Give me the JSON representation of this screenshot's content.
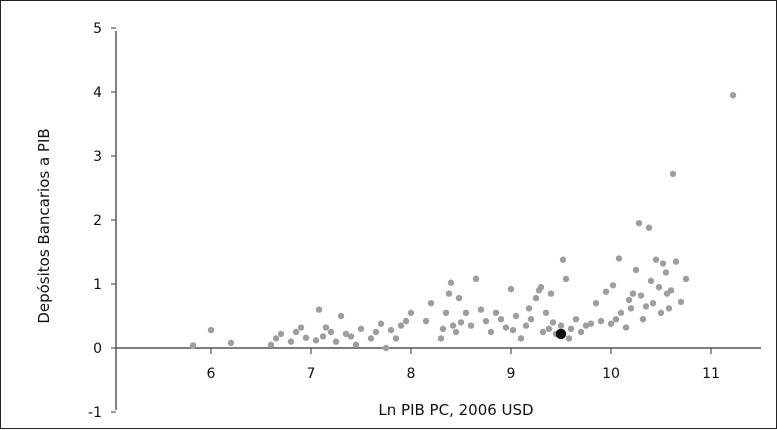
{
  "chart_data": {
    "type": "scatter",
    "xlabel": "Ln PIB PC, 2006 USD",
    "ylabel": "Depósitos Bancarios a PIB",
    "xlim": [
      5,
      12
    ],
    "ylim": [
      -1,
      5
    ],
    "x_ticks": [
      6,
      7,
      8,
      9,
      10,
      11
    ],
    "y_ticks": [
      -1,
      0,
      1,
      2,
      3,
      4,
      5
    ],
    "grid": false,
    "series": [
      {
        "color": "#9e9e9e",
        "points": [
          {
            "x": 5.82,
            "y": 0.04
          },
          {
            "x": 6.0,
            "y": 0.28
          },
          {
            "x": 6.2,
            "y": 0.08
          },
          {
            "x": 6.6,
            "y": 0.05
          },
          {
            "x": 6.65,
            "y": 0.15
          },
          {
            "x": 6.7,
            "y": 0.22
          },
          {
            "x": 6.8,
            "y": 0.1
          },
          {
            "x": 6.85,
            "y": 0.25
          },
          {
            "x": 6.9,
            "y": 0.32
          },
          {
            "x": 6.95,
            "y": 0.16
          },
          {
            "x": 7.05,
            "y": 0.12
          },
          {
            "x": 7.08,
            "y": 0.6
          },
          {
            "x": 7.12,
            "y": 0.18
          },
          {
            "x": 7.15,
            "y": 0.32
          },
          {
            "x": 7.2,
            "y": 0.25
          },
          {
            "x": 7.25,
            "y": 0.1
          },
          {
            "x": 7.3,
            "y": 0.5
          },
          {
            "x": 7.35,
            "y": 0.22
          },
          {
            "x": 7.4,
            "y": 0.18
          },
          {
            "x": 7.45,
            "y": 0.05
          },
          {
            "x": 7.5,
            "y": 0.3
          },
          {
            "x": 7.6,
            "y": 0.15
          },
          {
            "x": 7.65,
            "y": 0.25
          },
          {
            "x": 7.7,
            "y": 0.38
          },
          {
            "x": 7.75,
            "y": 0.0
          },
          {
            "x": 7.8,
            "y": 0.28
          },
          {
            "x": 7.85,
            "y": 0.15
          },
          {
            "x": 7.9,
            "y": 0.35
          },
          {
            "x": 7.95,
            "y": 0.42
          },
          {
            "x": 8.0,
            "y": 0.55
          },
          {
            "x": 8.15,
            "y": 0.42
          },
          {
            "x": 8.2,
            "y": 0.7
          },
          {
            "x": 8.3,
            "y": 0.15
          },
          {
            "x": 8.32,
            "y": 0.3
          },
          {
            "x": 8.35,
            "y": 0.55
          },
          {
            "x": 8.38,
            "y": 0.85
          },
          {
            "x": 8.4,
            "y": 1.02
          },
          {
            "x": 8.42,
            "y": 0.35
          },
          {
            "x": 8.45,
            "y": 0.25
          },
          {
            "x": 8.48,
            "y": 0.78
          },
          {
            "x": 8.5,
            "y": 0.4
          },
          {
            "x": 8.55,
            "y": 0.55
          },
          {
            "x": 8.6,
            "y": 0.35
          },
          {
            "x": 8.65,
            "y": 1.08
          },
          {
            "x": 8.7,
            "y": 0.6
          },
          {
            "x": 8.75,
            "y": 0.42
          },
          {
            "x": 8.8,
            "y": 0.25
          },
          {
            "x": 8.85,
            "y": 0.55
          },
          {
            "x": 8.9,
            "y": 0.45
          },
          {
            "x": 8.95,
            "y": 0.32
          },
          {
            "x": 9.0,
            "y": 0.92
          },
          {
            "x": 9.02,
            "y": 0.28
          },
          {
            "x": 9.05,
            "y": 0.5
          },
          {
            "x": 9.1,
            "y": 0.15
          },
          {
            "x": 9.15,
            "y": 0.35
          },
          {
            "x": 9.18,
            "y": 0.62
          },
          {
            "x": 9.2,
            "y": 0.45
          },
          {
            "x": 9.25,
            "y": 0.78
          },
          {
            "x": 9.28,
            "y": 0.9
          },
          {
            "x": 9.3,
            "y": 0.95
          },
          {
            "x": 9.32,
            "y": 0.25
          },
          {
            "x": 9.35,
            "y": 0.55
          },
          {
            "x": 9.38,
            "y": 0.3
          },
          {
            "x": 9.4,
            "y": 0.85
          },
          {
            "x": 9.42,
            "y": 0.4
          },
          {
            "x": 9.45,
            "y": 0.22
          },
          {
            "x": 9.5,
            "y": 0.35
          },
          {
            "x": 9.52,
            "y": 1.38
          },
          {
            "x": 9.55,
            "y": 1.08
          },
          {
            "x": 9.58,
            "y": 0.15
          },
          {
            "x": 9.6,
            "y": 0.3
          },
          {
            "x": 9.65,
            "y": 0.45
          },
          {
            "x": 9.7,
            "y": 0.25
          },
          {
            "x": 9.75,
            "y": 0.35
          },
          {
            "x": 9.8,
            "y": 0.38
          },
          {
            "x": 9.85,
            "y": 0.7
          },
          {
            "x": 9.9,
            "y": 0.42
          },
          {
            "x": 9.95,
            "y": 0.88
          },
          {
            "x": 10.0,
            "y": 0.38
          },
          {
            "x": 10.02,
            "y": 0.98
          },
          {
            "x": 10.05,
            "y": 0.45
          },
          {
            "x": 10.08,
            "y": 1.4
          },
          {
            "x": 10.1,
            "y": 0.55
          },
          {
            "x": 10.15,
            "y": 0.32
          },
          {
            "x": 10.18,
            "y": 0.75
          },
          {
            "x": 10.2,
            "y": 0.62
          },
          {
            "x": 10.22,
            "y": 0.85
          },
          {
            "x": 10.25,
            "y": 1.22
          },
          {
            "x": 10.28,
            "y": 1.95
          },
          {
            "x": 10.3,
            "y": 0.82
          },
          {
            "x": 10.32,
            "y": 0.45
          },
          {
            "x": 10.35,
            "y": 0.65
          },
          {
            "x": 10.38,
            "y": 1.88
          },
          {
            "x": 10.4,
            "y": 1.05
          },
          {
            "x": 10.42,
            "y": 0.7
          },
          {
            "x": 10.45,
            "y": 1.38
          },
          {
            "x": 10.48,
            "y": 0.95
          },
          {
            "x": 10.5,
            "y": 0.55
          },
          {
            "x": 10.52,
            "y": 1.32
          },
          {
            "x": 10.55,
            "y": 1.18
          },
          {
            "x": 10.56,
            "y": 0.85
          },
          {
            "x": 10.58,
            "y": 0.62
          },
          {
            "x": 10.6,
            "y": 0.9
          },
          {
            "x": 10.62,
            "y": 2.72
          },
          {
            "x": 10.65,
            "y": 1.35
          },
          {
            "x": 10.7,
            "y": 0.72
          },
          {
            "x": 10.75,
            "y": 1.08
          },
          {
            "x": 11.22,
            "y": 3.95
          }
        ]
      },
      {
        "color": "#111111",
        "points": [
          {
            "x": 9.5,
            "y": 0.22
          }
        ]
      }
    ]
  }
}
